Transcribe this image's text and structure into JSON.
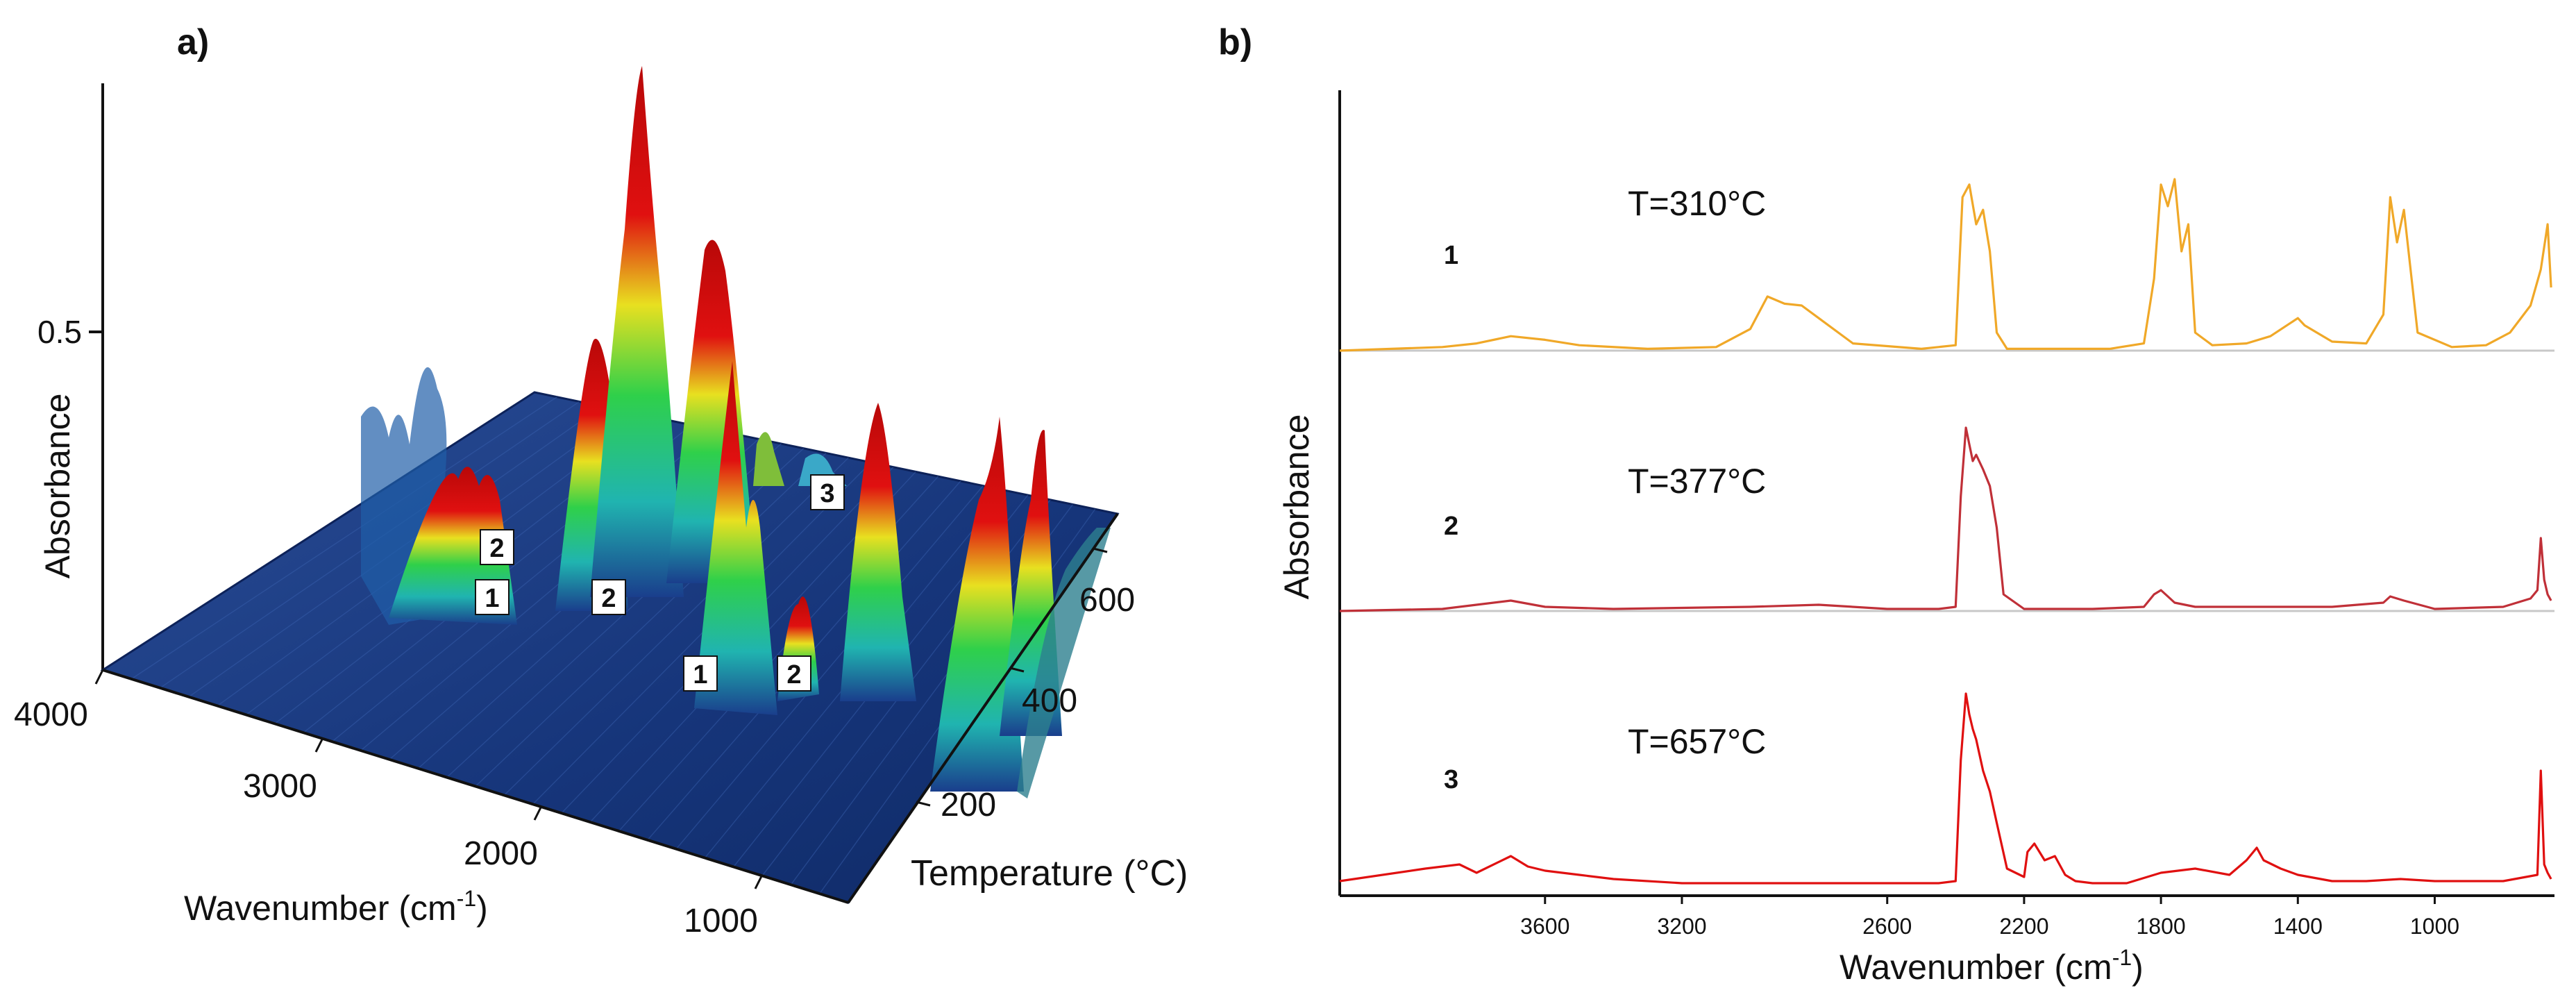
{
  "panel_a": {
    "label": "a)",
    "ylabel": "Absorbance",
    "yticks": [
      "0.5"
    ],
    "xlabel_main": "Wavenumber (cm",
    "xlabel_sup": "-1",
    "xlabel_close": ")",
    "wn_ticks": [
      "4000",
      "3000",
      "2000",
      "1000"
    ],
    "temp_label": "Temperature (°C)",
    "temp_ticks": [
      "600",
      "400",
      "200"
    ],
    "markers": [
      "1",
      "2",
      "2",
      "1",
      "2",
      "3"
    ],
    "colors": {
      "base": "#1a3e8c",
      "mid": "#2fd04a",
      "high": "#e01010"
    }
  },
  "panel_b": {
    "label": "b)",
    "ylabel": "Absorbance",
    "xlabel_main": "Wavenumber (cm",
    "xlabel_sup": "-1",
    "xlabel_close": ")"
  },
  "chart_data": [
    {
      "type": "surface",
      "title": "a)",
      "xlabel": "Wavenumber (cm-1)",
      "ylabel": "Absorbance",
      "zlabel": "Temperature (°C)",
      "wavenumber_ticks": [
        4000,
        3000,
        2000,
        1000
      ],
      "temperature_ticks": [
        200,
        400,
        600
      ],
      "absorbance_ticks": [
        0.5
      ],
      "peak_markers": [
        "1",
        "2",
        "3"
      ],
      "peaks": [
        {
          "wavenumber": 2350,
          "temperature": 310,
          "absorbance": 0.93
        },
        {
          "wavenumber": 2350,
          "temperature": 377,
          "absorbance": 0.72
        },
        {
          "wavenumber": 1760,
          "temperature": 330,
          "absorbance": 0.62
        },
        {
          "wavenumber": 1130,
          "temperature": 330,
          "absorbance": 0.4
        },
        {
          "wavenumber": 670,
          "temperature": 400,
          "absorbance": 0.42
        },
        {
          "wavenumber": 2950,
          "temperature": 320,
          "absorbance": 0.2
        }
      ]
    },
    {
      "type": "line",
      "title": "b)",
      "xlabel": "Wavenumber (cm-1)",
      "ylabel": "Absorbance",
      "xlim": [
        4200,
        650
      ],
      "xticks": [
        3600,
        3200,
        2600,
        2200,
        1800,
        1400,
        1000
      ],
      "series": [
        {
          "name": "1",
          "temperature_label": "T=310°C",
          "color": "#f0a828",
          "x": [
            4200,
            3900,
            3800,
            3700,
            3600,
            3500,
            3300,
            3100,
            3000,
            2950,
            2900,
            2850,
            2800,
            2700,
            2500,
            2400,
            2380,
            2360,
            2340,
            2320,
            2300,
            2280,
            2250,
            2100,
            1950,
            1850,
            1820,
            1800,
            1780,
            1760,
            1740,
            1720,
            1700,
            1650,
            1550,
            1480,
            1400,
            1380,
            1300,
            1200,
            1150,
            1130,
            1110,
            1090,
            1050,
            950,
            850,
            780,
            720,
            690,
            670,
            660
          ],
          "y": [
            0.0,
            0.02,
            0.04,
            0.08,
            0.06,
            0.03,
            0.01,
            0.02,
            0.12,
            0.3,
            0.26,
            0.25,
            0.18,
            0.04,
            0.01,
            0.03,
            0.85,
            0.92,
            0.7,
            0.78,
            0.55,
            0.1,
            0.01,
            0.01,
            0.01,
            0.04,
            0.4,
            0.92,
            0.8,
            0.95,
            0.55,
            0.7,
            0.1,
            0.03,
            0.04,
            0.08,
            0.18,
            0.14,
            0.05,
            0.04,
            0.2,
            0.85,
            0.6,
            0.78,
            0.1,
            0.02,
            0.03,
            0.1,
            0.25,
            0.45,
            0.7,
            0.35
          ]
        },
        {
          "name": "2",
          "temperature_label": "T=377°C",
          "color": "#c03038",
          "x": [
            4200,
            3900,
            3800,
            3700,
            3600,
            3400,
            3000,
            2800,
            2600,
            2450,
            2400,
            2385,
            2370,
            2360,
            2350,
            2340,
            2320,
            2300,
            2280,
            2260,
            2200,
            2000,
            1850,
            1820,
            1800,
            1780,
            1760,
            1700,
            1500,
            1300,
            1150,
            1130,
            1110,
            1090,
            1000,
            800,
            720,
            700,
            690,
            680,
            670,
            660
          ],
          "y": [
            0.0,
            0.01,
            0.03,
            0.05,
            0.02,
            0.01,
            0.02,
            0.03,
            0.01,
            0.01,
            0.02,
            0.55,
            0.88,
            0.8,
            0.72,
            0.75,
            0.68,
            0.6,
            0.4,
            0.08,
            0.01,
            0.01,
            0.02,
            0.08,
            0.1,
            0.07,
            0.04,
            0.02,
            0.02,
            0.02,
            0.04,
            0.07,
            0.06,
            0.05,
            0.01,
            0.02,
            0.06,
            0.1,
            0.35,
            0.15,
            0.08,
            0.05
          ]
        },
        {
          "name": "3",
          "temperature_label": "T=657°C",
          "color": "#e01010",
          "x": [
            4200,
            3950,
            3850,
            3800,
            3700,
            3650,
            3600,
            3500,
            3400,
            3200,
            3000,
            2800,
            2600,
            2450,
            2400,
            2385,
            2370,
            2360,
            2350,
            2340,
            2320,
            2300,
            2280,
            2250,
            2200,
            2190,
            2170,
            2140,
            2110,
            2080,
            2050,
            2000,
            1900,
            1800,
            1700,
            1600,
            1550,
            1520,
            1500,
            1450,
            1400,
            1300,
            1200,
            1100,
            1000,
            800,
            700,
            690,
            680,
            670,
            660
          ],
          "y": [
            0.02,
            0.08,
            0.1,
            0.06,
            0.14,
            0.09,
            0.07,
            0.05,
            0.03,
            0.01,
            0.01,
            0.01,
            0.01,
            0.01,
            0.02,
            0.6,
            0.92,
            0.82,
            0.75,
            0.7,
            0.55,
            0.45,
            0.3,
            0.08,
            0.04,
            0.16,
            0.2,
            0.12,
            0.14,
            0.05,
            0.02,
            0.01,
            0.01,
            0.06,
            0.08,
            0.05,
            0.12,
            0.18,
            0.12,
            0.08,
            0.05,
            0.02,
            0.02,
            0.03,
            0.02,
            0.02,
            0.05,
            0.55,
            0.1,
            0.06,
            0.03
          ]
        }
      ]
    }
  ]
}
